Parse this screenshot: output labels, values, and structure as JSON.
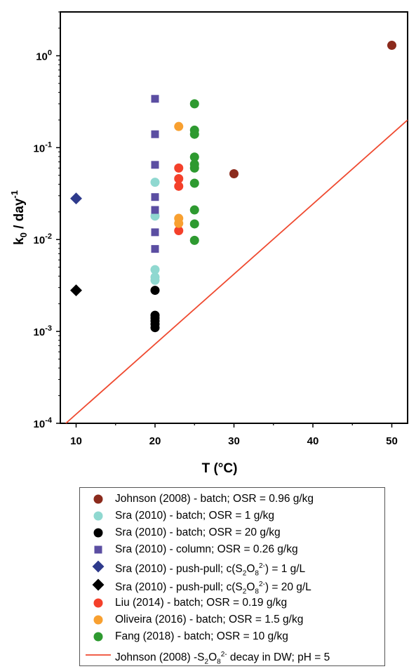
{
  "chart_data": {
    "type": "scatter",
    "xlabel": "T (°C)",
    "ylabel_parts": {
      "base": "k",
      "sub": "0",
      "mid": " / day",
      "sup": "-1"
    },
    "xlim": [
      8,
      52
    ],
    "ylim": [
      0.0001,
      3
    ],
    "yscale": "log",
    "x_ticks": [
      10,
      20,
      30,
      40,
      50
    ],
    "y_ticks": [
      {
        "value": 0.0001,
        "base": "10",
        "exp": "-4"
      },
      {
        "value": 0.001,
        "base": "10",
        "exp": "-3"
      },
      {
        "value": 0.01,
        "base": "10",
        "exp": "-2"
      },
      {
        "value": 0.1,
        "base": "10",
        "exp": "-1"
      },
      {
        "value": 1,
        "base": "10",
        "exp": "0"
      }
    ],
    "grid": false,
    "legend_position": "below",
    "series": [
      {
        "name_parts": [
          "Johnson (2008) - batch; OSR = 0.96 g/kg"
        ],
        "marker": "circle",
        "color": "#8b2a1c",
        "points": [
          [
            50,
            1.3
          ],
          [
            30,
            0.052
          ]
        ]
      },
      {
        "name_parts": [
          "Sra (2010) - batch; OSR = 1 g/kg"
        ],
        "marker": "circle",
        "color": "#8fd8d0",
        "points": [
          [
            20,
            0.042
          ],
          [
            20,
            0.018
          ],
          [
            20,
            0.0047
          ],
          [
            20,
            0.0039
          ],
          [
            20,
            0.0036
          ]
        ]
      },
      {
        "name_parts": [
          "Sra (2010) - batch; OSR = 20 g/kg"
        ],
        "marker": "circle",
        "color": "#000000",
        "points": [
          [
            20,
            0.0028
          ],
          [
            20,
            0.0015
          ],
          [
            20,
            0.0014
          ],
          [
            20,
            0.0013
          ],
          [
            20,
            0.0012
          ],
          [
            20,
            0.0011
          ]
        ]
      },
      {
        "name_parts": [
          "Sra (2010) - column; OSR = 0.26 g/kg"
        ],
        "marker": "square",
        "color": "#5b4ea2",
        "points": [
          [
            20,
            0.34
          ],
          [
            20,
            0.14
          ],
          [
            20,
            0.065
          ],
          [
            20,
            0.029
          ],
          [
            20,
            0.021
          ],
          [
            20,
            0.012
          ],
          [
            20,
            0.0079
          ]
        ]
      },
      {
        "name_parts": [
          "Sra (2010) - push-pull; c(S",
          "2",
          "O",
          "8",
          "2-",
          ") = 1 g/L"
        ],
        "marker": "diamond",
        "color": "#2e3a8c",
        "points": [
          [
            10,
            0.028
          ]
        ]
      },
      {
        "name_parts": [
          "Sra (2010) - push-pull; c(S",
          "2",
          "O",
          "8",
          "2-",
          ") = 20 g/L"
        ],
        "marker": "diamond",
        "color": "#000000",
        "points": [
          [
            10,
            0.0028
          ]
        ]
      },
      {
        "name_parts": [
          "Liu (2014) - batch; OSR = 0.19 g/kg"
        ],
        "marker": "circle",
        "color": "#f4402a",
        "points": [
          [
            23,
            0.06
          ],
          [
            23,
            0.046
          ],
          [
            23,
            0.038
          ],
          [
            23,
            0.0125
          ]
        ]
      },
      {
        "name_parts": [
          "Oliveira (2016) - batch; OSR = 1.5 g/kg"
        ],
        "marker": "circle",
        "color": "#f8a030",
        "points": [
          [
            23,
            0.17
          ],
          [
            23,
            0.017
          ],
          [
            23,
            0.015
          ]
        ]
      },
      {
        "name_parts": [
          "Fang (2018) - batch; OSR = 10 g/kg"
        ],
        "marker": "circle",
        "color": "#2e9a30",
        "points": [
          [
            25,
            0.3
          ],
          [
            25,
            0.155
          ],
          [
            25,
            0.14
          ],
          [
            25,
            0.079
          ],
          [
            25,
            0.066
          ],
          [
            25,
            0.06
          ],
          [
            25,
            0.041
          ],
          [
            25,
            0.021
          ],
          [
            25,
            0.0148
          ],
          [
            25,
            0.0098
          ]
        ]
      },
      {
        "name_parts": [
          "Johnson (2008) -S",
          "2",
          "O",
          "8",
          "2-",
          " decay in DW; pH = 5"
        ],
        "marker": "line",
        "color": "#ef4a30",
        "line": [
          [
            8.7,
            0.0001
          ],
          [
            52,
            0.2
          ]
        ]
      }
    ]
  }
}
